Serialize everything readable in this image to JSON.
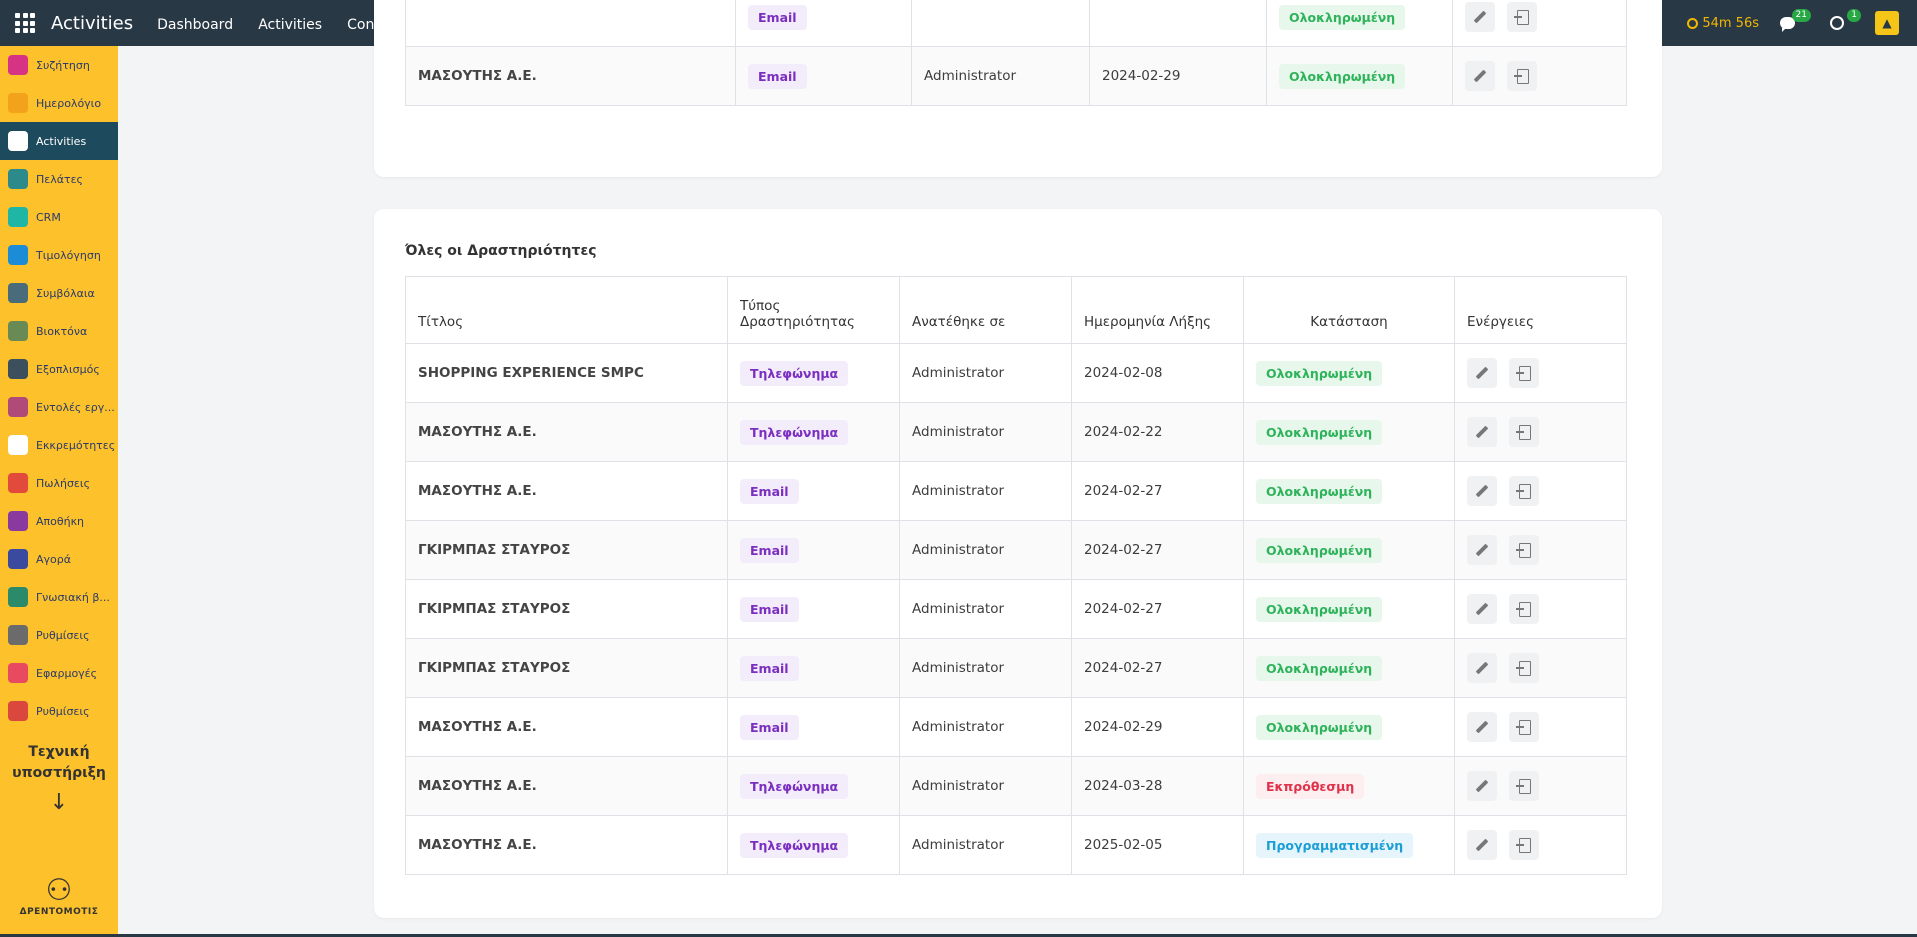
{
  "topbar": {
    "app_title": "Activities",
    "nav": [
      "Dashboard",
      "Activities",
      "Configuration"
    ],
    "timer": "54m 56s",
    "messages_count": "21",
    "activities_count": "1"
  },
  "sidebar": {
    "items": [
      {
        "label": "Συζήτηση",
        "icon": "chat-icon",
        "color": "#d63384"
      },
      {
        "label": "Ημερολόγιο",
        "icon": "calendar-icon",
        "color": "#f3a31b"
      },
      {
        "label": "Activities",
        "icon": "activities-icon",
        "color": "#ffffff",
        "active": true
      },
      {
        "label": "Πελάτες",
        "icon": "contacts-icon",
        "color": "#2d8a8a"
      },
      {
        "label": "CRM",
        "icon": "crm-icon",
        "color": "#1fb6a6"
      },
      {
        "label": "Τιμολόγηση",
        "icon": "invoice-icon",
        "color": "#1c8cd6"
      },
      {
        "label": "Συμβόλαια",
        "icon": "contracts-icon",
        "color": "#4a6c7a"
      },
      {
        "label": "Βιοκτόνα",
        "icon": "biocide-icon",
        "color": "#6a8a55"
      },
      {
        "label": "Εξοπλισμός",
        "icon": "equipment-icon",
        "color": "#3b4f5c"
      },
      {
        "label": "Εντολές εργ...",
        "icon": "work-orders-icon",
        "color": "#b04a78"
      },
      {
        "label": "Εκκρεμότητες",
        "icon": "pending-icon",
        "color": "#ffffff"
      },
      {
        "label": "Πωλήσεις",
        "icon": "sales-icon",
        "color": "#e24a3b"
      },
      {
        "label": "Αποθήκη",
        "icon": "inventory-icon",
        "color": "#8a3a9e"
      },
      {
        "label": "Αγορά",
        "icon": "purchase-icon",
        "color": "#3a4a9e"
      },
      {
        "label": "Γνωσιακή β...",
        "icon": "knowledge-icon",
        "color": "#2b8a6a"
      },
      {
        "label": "Ρυθμίσεις",
        "icon": "settings-icon",
        "color": "#6b6b6b"
      },
      {
        "label": "Εφαρμογές",
        "icon": "apps-icon",
        "color": "#e84a5f"
      },
      {
        "label": "Ρυθμίσεις",
        "icon": "settings2-icon",
        "color": "#d9473d"
      }
    ],
    "support_label": "Τεχνική υποστήριξη",
    "logo_name": "ΔΡΕΝΤΟΜΟΤΙΣ"
  },
  "top_table": {
    "rows": [
      {
        "title": "",
        "type": "Email",
        "assigned": "",
        "date": "",
        "status": "Ολοκληρωμένη",
        "status_kind": "done"
      },
      {
        "title": "ΜΑΣΟΥΤΗΣ Α.Ε.",
        "type": "Email",
        "assigned": "Administrator",
        "date": "2024-02-29",
        "status": "Ολοκληρωμένη",
        "status_kind": "done"
      }
    ]
  },
  "main": {
    "title": "Όλες οι Δραστηριότητες",
    "headers": {
      "title": "Τίτλος",
      "type": "Τύπος Δραστηριότητας",
      "assigned": "Ανατέθηκε σε",
      "date": "Ημερομηνία Λήξης",
      "status": "Κατάσταση",
      "actions": "Ενέργειες"
    },
    "rows": [
      {
        "title": "SHOPPING EXPERIENCE SMPC",
        "type": "Τηλεφώνημα",
        "assigned": "Administrator",
        "date": "2024-02-08",
        "status": "Ολοκληρωμένη",
        "status_kind": "done"
      },
      {
        "title": "ΜΑΣΟΥΤΗΣ Α.Ε.",
        "type": "Τηλεφώνημα",
        "assigned": "Administrator",
        "date": "2024-02-22",
        "status": "Ολοκληρωμένη",
        "status_kind": "done"
      },
      {
        "title": "ΜΑΣΟΥΤΗΣ Α.Ε.",
        "type": "Email",
        "assigned": "Administrator",
        "date": "2024-02-27",
        "status": "Ολοκληρωμένη",
        "status_kind": "done"
      },
      {
        "title": "ΓΚΙΡΜΠΑΣ ΣΤΑΥΡΟΣ",
        "type": "Email",
        "assigned": "Administrator",
        "date": "2024-02-27",
        "status": "Ολοκληρωμένη",
        "status_kind": "done"
      },
      {
        "title": "ΓΚΙΡΜΠΑΣ ΣΤΑΥΡΟΣ",
        "type": "Email",
        "assigned": "Administrator",
        "date": "2024-02-27",
        "status": "Ολοκληρωμένη",
        "status_kind": "done"
      },
      {
        "title": "ΓΚΙΡΜΠΑΣ ΣΤΑΥΡΟΣ",
        "type": "Email",
        "assigned": "Administrator",
        "date": "2024-02-27",
        "status": "Ολοκληρωμένη",
        "status_kind": "done"
      },
      {
        "title": "ΜΑΣΟΥΤΗΣ Α.Ε.",
        "type": "Email",
        "assigned": "Administrator",
        "date": "2024-02-29",
        "status": "Ολοκληρωμένη",
        "status_kind": "done"
      },
      {
        "title": "ΜΑΣΟΥΤΗΣ Α.Ε.",
        "type": "Τηλεφώνημα",
        "assigned": "Administrator",
        "date": "2024-03-28",
        "status": "Εκπρόθεσμη",
        "status_kind": "over"
      },
      {
        "title": "ΜΑΣΟΥΤΗΣ Α.Ε.",
        "type": "Τηλεφώνημα",
        "assigned": "Administrator",
        "date": "2025-02-05",
        "status": "Προγραμματισμένη",
        "status_kind": "sched"
      }
    ]
  }
}
